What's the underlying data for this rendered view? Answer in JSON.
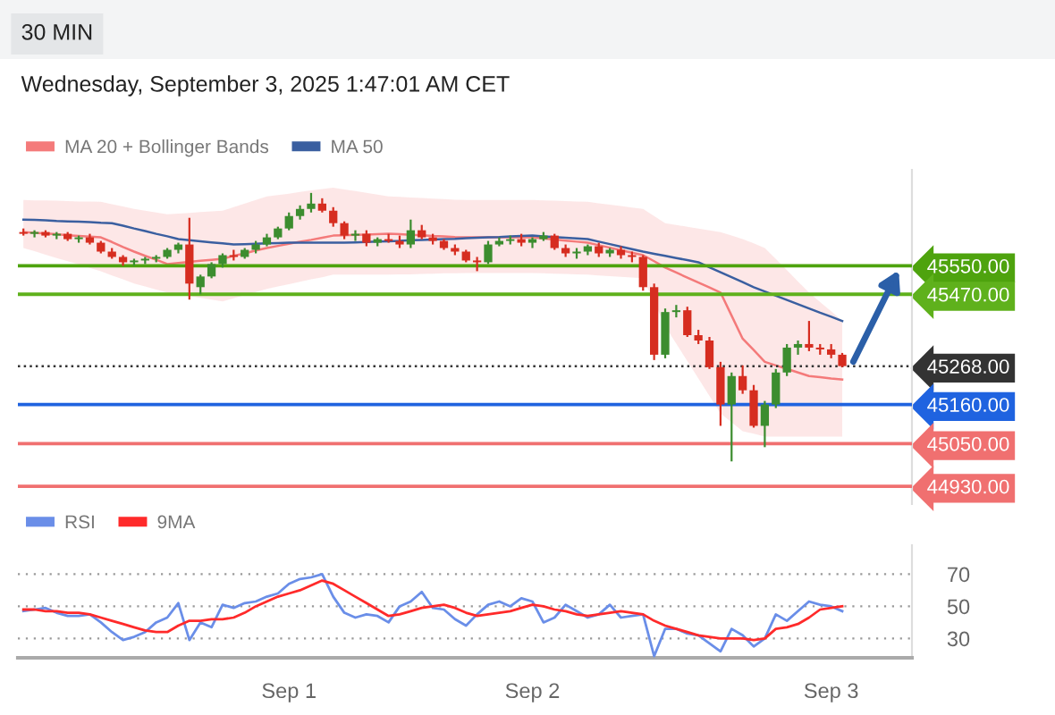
{
  "chart_data": [
    {
      "type": "candlestick",
      "subtitle": "Wednesday, September 3, 2025 1:47:01 AM CET",
      "annotations": [
        "30 MIN"
      ],
      "categories": [
        null,
        null,
        null,
        null,
        null,
        null,
        null,
        null,
        null,
        null,
        null,
        null,
        null,
        null,
        null,
        null,
        null,
        null,
        null,
        null,
        null,
        null,
        null,
        null,
        null,
        null,
        null,
        null,
        null,
        null,
        null,
        null,
        null,
        null,
        null,
        null,
        null,
        null,
        null,
        null,
        null,
        null,
        null,
        null,
        null,
        null,
        null,
        null,
        null,
        null,
        null,
        null,
        null,
        null,
        null,
        null,
        null,
        null,
        null,
        null,
        null,
        null,
        null,
        null,
        null,
        null,
        null,
        null,
        null,
        null,
        null,
        null,
        null,
        null,
        null
      ],
      "ohlc": [
        [
          45645,
          45655,
          45635,
          45640
        ],
        [
          45640,
          45650,
          45630,
          45645
        ],
        [
          45645,
          45650,
          45630,
          45635
        ],
        [
          45635,
          45645,
          45625,
          45640
        ],
        [
          45640,
          45645,
          45620,
          45625
        ],
        [
          45625,
          45635,
          45615,
          45630
        ],
        [
          45630,
          45640,
          45610,
          45615
        ],
        [
          45615,
          45620,
          45585,
          45590
        ],
        [
          45590,
          45600,
          45570,
          45575
        ],
        [
          45575,
          45580,
          45550,
          45560
        ],
        [
          45560,
          45570,
          45550,
          45565
        ],
        [
          45565,
          45575,
          45555,
          45570
        ],
        [
          45570,
          45580,
          45560,
          45575
        ],
        [
          45575,
          45600,
          45570,
          45595
        ],
        [
          45595,
          45615,
          45585,
          45610
        ],
        [
          45610,
          45685,
          45455,
          45500
        ],
        [
          45490,
          45525,
          45470,
          45520
        ],
        [
          45520,
          45560,
          45515,
          45555
        ],
        [
          45555,
          45585,
          45545,
          45580
        ],
        [
          45580,
          45595,
          45565,
          45575
        ],
        [
          45575,
          45600,
          45570,
          45595
        ],
        [
          45595,
          45620,
          45585,
          45610
        ],
        [
          45610,
          45640,
          45605,
          45630
        ],
        [
          45630,
          45660,
          45625,
          45655
        ],
        [
          45655,
          45700,
          45650,
          45690
        ],
        [
          45690,
          45720,
          45680,
          45710
        ],
        [
          45710,
          45755,
          45700,
          45725
        ],
        [
          45725,
          45740,
          45700,
          45705
        ],
        [
          45705,
          45715,
          45660,
          45670
        ],
        [
          45670,
          45675,
          45625,
          45635
        ],
        [
          45635,
          45650,
          45620,
          45640
        ],
        [
          45640,
          45650,
          45605,
          45615
        ],
        [
          45615,
          45630,
          45605,
          45625
        ],
        [
          45625,
          45640,
          45615,
          45620
        ],
        [
          45620,
          45635,
          45600,
          45610
        ],
        [
          45610,
          45680,
          45600,
          45650
        ],
        [
          45650,
          45665,
          45625,
          45630
        ],
        [
          45630,
          45640,
          45610,
          45620
        ],
        [
          45620,
          45625,
          45595,
          45600
        ],
        [
          45600,
          45610,
          45580,
          45590
        ],
        [
          45590,
          45595,
          45560,
          45565
        ],
        [
          45565,
          45575,
          45535,
          45560
        ],
        [
          45560,
          45620,
          45555,
          45610
        ],
        [
          45610,
          45630,
          45605,
          45620
        ],
        [
          45620,
          45635,
          45610,
          45625
        ],
        [
          45625,
          45640,
          45605,
          45615
        ],
        [
          45615,
          45630,
          45600,
          45625
        ],
        [
          45625,
          45645,
          45620,
          45635
        ],
        [
          45635,
          45640,
          45595,
          45600
        ],
        [
          45600,
          45610,
          45575,
          45585
        ],
        [
          45585,
          45600,
          45570,
          45590
        ],
        [
          45590,
          45610,
          45580,
          45605
        ],
        [
          45605,
          45615,
          45575,
          45585
        ],
        [
          45585,
          45600,
          45575,
          45595
        ],
        [
          45595,
          45605,
          45570,
          45580
        ],
        [
          45580,
          45590,
          45560,
          45575
        ],
        [
          45575,
          45580,
          45480,
          45490
        ],
        [
          45490,
          45500,
          45285,
          45300
        ],
        [
          45300,
          45430,
          45290,
          45420
        ],
        [
          45420,
          45440,
          45405,
          45425
        ],
        [
          45425,
          45435,
          45350,
          45355
        ],
        [
          45355,
          45370,
          45330,
          45340
        ],
        [
          45340,
          45350,
          45260,
          45265
        ],
        [
          45265,
          45280,
          45100,
          45160
        ],
        [
          45160,
          45250,
          45000,
          45240
        ],
        [
          45240,
          45270,
          45190,
          45200
        ],
        [
          45200,
          45215,
          45095,
          45100
        ],
        [
          45100,
          45170,
          45040,
          45160
        ],
        [
          45160,
          45260,
          45150,
          45250
        ],
        [
          45250,
          45330,
          45240,
          45320
        ],
        [
          45320,
          45340,
          45300,
          45330
        ],
        [
          45330,
          45395,
          45310,
          45320
        ],
        [
          45320,
          45330,
          45300,
          45315
        ],
        [
          45315,
          45330,
          45290,
          45300
        ],
        [
          45300,
          45305,
          45265,
          45268
        ]
      ],
      "colors": [
        "#d62d20",
        "#3c8d2f",
        "#d62d20",
        "#3c8d2f",
        "#d62d20",
        "#3c8d2f",
        "#d62d20",
        "#d62d20",
        "#d62d20",
        "#d62d20",
        "#3c8d2f",
        "#3c8d2f",
        "#3c8d2f",
        "#3c8d2f",
        "#3c8d2f",
        "#d62d20",
        "#3c8d2f",
        "#3c8d2f",
        "#3c8d2f",
        "#d62d20",
        "#3c8d2f",
        "#3c8d2f",
        "#3c8d2f",
        "#3c8d2f",
        "#3c8d2f",
        "#3c8d2f",
        "#3c8d2f",
        "#d62d20",
        "#d62d20",
        "#d62d20",
        "#3c8d2f",
        "#d62d20",
        "#3c8d2f",
        "#d62d20",
        "#d62d20",
        "#3c8d2f",
        "#d62d20",
        "#d62d20",
        "#d62d20",
        "#d62d20",
        "#d62d20",
        "#d62d20",
        "#3c8d2f",
        "#3c8d2f",
        "#3c8d2f",
        "#d62d20",
        "#3c8d2f",
        "#3c8d2f",
        "#d62d20",
        "#d62d20",
        "#3c8d2f",
        "#3c8d2f",
        "#d62d20",
        "#3c8d2f",
        "#d62d20",
        "#d62d20",
        "#d62d20",
        "#d62d20",
        "#3c8d2f",
        "#3c8d2f",
        "#d62d20",
        "#d62d20",
        "#d62d20",
        "#d62d20",
        "#3c8d2f",
        "#d62d20",
        "#d62d20",
        "#3c8d2f",
        "#3c8d2f",
        "#3c8d2f",
        "#3c8d2f",
        "#d62d20",
        "#d62d20",
        "#d62d20",
        "#d62d20"
      ],
      "series": [
        {
          "name": "MA 20 + Bollinger Bands",
          "type": "line",
          "color": "#f47a7a",
          "values": [
            45645,
            45643,
            45641,
            45639,
            45636,
            45634,
            45632,
            45630,
            45617,
            45603,
            45590,
            45578,
            45567,
            45555,
            45558,
            45561,
            45564,
            45567,
            45570,
            45578,
            45585,
            45593,
            45600,
            45606,
            45612,
            45618,
            45623,
            45629,
            45635,
            45636,
            45637,
            45638,
            45639,
            45640,
            45639,
            45637,
            45636,
            45634,
            45633,
            45631,
            45630,
            45630,
            45630,
            45630,
            45630,
            45630,
            45630,
            45627,
            45624,
            45621,
            45618,
            45615,
            45608,
            45601,
            45594,
            45587,
            45580,
            45563,
            45545,
            45531,
            45517,
            45503,
            45489,
            45475,
            45410,
            45345,
            45313,
            45280,
            45270,
            45260,
            45250,
            45240,
            45237,
            45233,
            45230
          ],
          "upper": [
            45735,
            45734,
            45734,
            45733,
            45732,
            45731,
            45731,
            45730,
            45723,
            45717,
            45710,
            45705,
            45700,
            45695,
            45697,
            45699,
            45701,
            45703,
            45705,
            45715,
            45725,
            45735,
            45745,
            45749,
            45753,
            45758,
            45762,
            45766,
            45770,
            45765,
            45760,
            45755,
            45750,
            45745,
            45744,
            45742,
            45741,
            45739,
            45738,
            45736,
            45735,
            45735,
            45735,
            45735,
            45735,
            45735,
            45735,
            45734,
            45733,
            45732,
            45731,
            45730,
            45726,
            45722,
            45718,
            45714,
            45710,
            45690,
            45670,
            45665,
            45660,
            45655,
            45650,
            45645,
            45635,
            45625,
            45613,
            45600,
            45569,
            45538,
            45506,
            45475,
            45448,
            45422,
            45395
          ],
          "lower": [
            45600,
            45591,
            45581,
            45572,
            45563,
            45554,
            45544,
            45535,
            45523,
            45512,
            45500,
            45492,
            45483,
            45475,
            45470,
            45465,
            45460,
            45455,
            45450,
            45459,
            45468,
            45476,
            45485,
            45492,
            45498,
            45505,
            45512,
            45518,
            45525,
            45525,
            45525,
            45525,
            45525,
            45525,
            45526,
            45526,
            45527,
            45528,
            45529,
            45529,
            45530,
            45530,
            45530,
            45530,
            45530,
            45530,
            45530,
            45529,
            45528,
            45527,
            45526,
            45525,
            45523,
            45521,
            45519,
            45517,
            45515,
            45448,
            45380,
            45331,
            45282,
            45233,
            45184,
            45135,
            45110,
            45085,
            45078,
            45070,
            45070,
            45070,
            45070,
            45070,
            45070,
            45070,
            45070
          ]
        },
        {
          "name": "MA 50",
          "type": "line",
          "color": "#3a5fa0",
          "values": [
            45680,
            45679,
            45678,
            45676,
            45675,
            45674,
            45673,
            45671,
            45670,
            45663,
            45655,
            45648,
            45640,
            45633,
            45625,
            45622,
            45619,
            45616,
            45613,
            45610,
            45611,
            45612,
            45613,
            45614,
            45615,
            45615,
            45615,
            45615,
            45615,
            45615,
            45616,
            45617,
            45618,
            45619,
            45620,
            45622,
            45623,
            45624,
            45625,
            45626,
            45628,
            45629,
            45630,
            45631,
            45633,
            45634,
            45635,
            45633,
            45631,
            45629,
            45627,
            45625,
            45618,
            45611,
            45604,
            45597,
            45590,
            45584,
            45578,
            45572,
            45566,
            45560,
            45546,
            45532,
            45518,
            45504,
            45490,
            45478,
            45466,
            45454,
            45442,
            45430,
            45418,
            45407,
            45395
          ]
        }
      ],
      "ref_lines": [
        {
          "axis": "y",
          "value": 45550,
          "color": "#4ea30e"
        },
        {
          "axis": "y",
          "value": 45470,
          "color": "#5fb11c"
        },
        {
          "axis": "y",
          "value": 45268,
          "color": "#333333",
          "line_style": "dotted"
        },
        {
          "axis": "y",
          "value": 45160,
          "color": "#1f63e0"
        },
        {
          "axis": "y",
          "value": 45050,
          "color": "#f07070"
        },
        {
          "axis": "y",
          "value": 44930,
          "color": "#f07070"
        }
      ],
      "yticks": [
        {
          "value": 45550,
          "label": "45550.00"
        },
        {
          "value": 45470,
          "label": "45470.00"
        },
        {
          "value": 45268,
          "label": "45268.00"
        },
        {
          "value": 45160,
          "label": "45160.00"
        },
        {
          "value": 45050,
          "label": "45050.00"
        },
        {
          "value": 44930,
          "label": "44930.00"
        }
      ],
      "ylim": [
        44880,
        45820
      ],
      "tick_labels": "y",
      "legend": "top left"
    },
    {
      "type": "line",
      "ylim": [
        18,
        88
      ],
      "yticks": [
        30,
        50,
        70
      ],
      "grid": "y",
      "legend": "top left",
      "categories": [
        null,
        null,
        null,
        null,
        null,
        null,
        null,
        null,
        null,
        null,
        null,
        null,
        null,
        null,
        null,
        null,
        null,
        null,
        null,
        null,
        null,
        null,
        null,
        null,
        "Sep 1",
        null,
        null,
        null,
        null,
        null,
        null,
        null,
        null,
        null,
        null,
        null,
        null,
        null,
        null,
        null,
        null,
        null,
        null,
        null,
        null,
        null,
        "Sep 2",
        null,
        null,
        null,
        null,
        null,
        null,
        null,
        null,
        null,
        null,
        null,
        null,
        null,
        null,
        null,
        null,
        null,
        null,
        null,
        null,
        null,
        null,
        null,
        null,
        null,
        null,
        "Sep 3",
        null
      ],
      "series": [
        {
          "name": "RSI",
          "color": "#6a8ee8",
          "values": [
            47,
            48,
            49,
            46,
            44,
            44,
            45,
            40,
            34,
            29,
            31,
            34,
            40,
            43,
            52,
            29,
            40,
            37,
            51,
            49,
            52,
            53,
            56,
            58,
            64,
            67,
            68,
            70,
            56,
            46,
            43,
            45,
            44,
            40,
            50,
            53,
            59,
            49,
            48,
            42,
            38,
            45,
            51,
            53,
            50,
            55,
            53,
            40,
            43,
            51,
            47,
            43,
            45,
            51,
            43,
            44,
            45,
            19,
            36,
            36,
            33,
            32,
            27,
            22,
            36,
            32,
            25,
            30,
            45,
            41,
            47,
            53,
            51,
            50,
            47
          ]
        },
        {
          "name": "9MA",
          "color": "#ff2a2a",
          "values": [
            48,
            48,
            47,
            47,
            46,
            46,
            45,
            43,
            41,
            39,
            37,
            35,
            34,
            34,
            38,
            41,
            41,
            42,
            42,
            43,
            46,
            50,
            53,
            56,
            58,
            60,
            63,
            66,
            64,
            60,
            56,
            52,
            48,
            44,
            45,
            47,
            49,
            50,
            51,
            49,
            46,
            44,
            45,
            46,
            47,
            49,
            51,
            50,
            48,
            47,
            45,
            44,
            45,
            46,
            47,
            46,
            45,
            41,
            38,
            36,
            34,
            32,
            31,
            30,
            30,
            30,
            29,
            30,
            36,
            37,
            39,
            43,
            48,
            49,
            50
          ]
        }
      ]
    }
  ]
}
